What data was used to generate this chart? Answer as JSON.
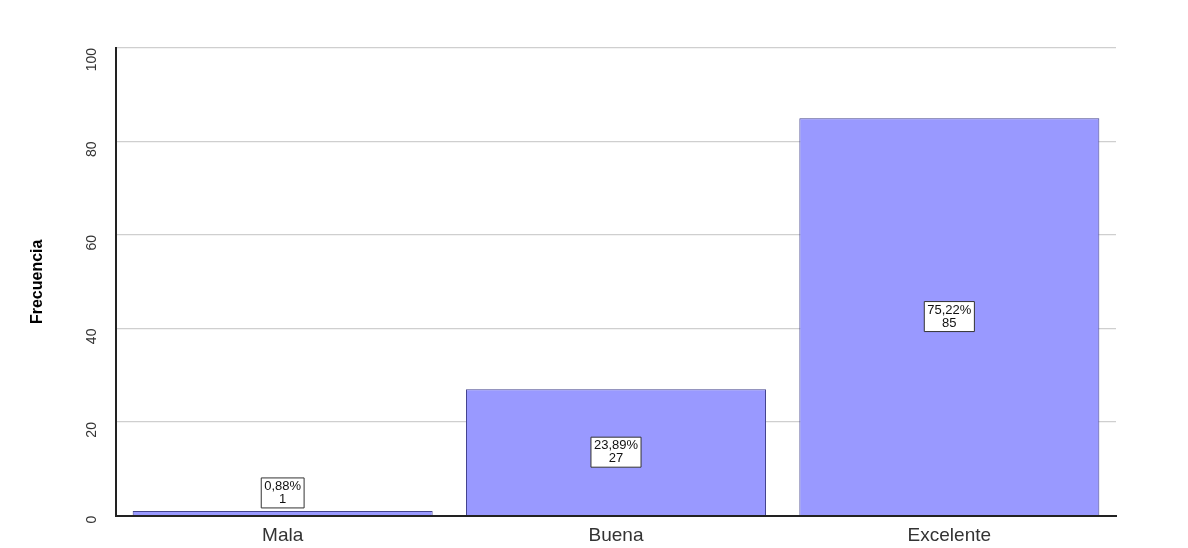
{
  "chart_data": {
    "type": "bar",
    "ylabel": "Frecuencia",
    "categories": [
      "Mala",
      "Buena",
      "Excelente"
    ],
    "values": [
      1,
      27,
      85
    ],
    "color": "#9999ff",
    "value_labels": [
      "0,88%\n1",
      "23,89%\n27",
      "75,22%\n85"
    ],
    "ylim": [
      0,
      100
    ],
    "yticks": [
      0,
      20,
      40,
      60,
      80,
      100
    ],
    "grid": "y"
  }
}
